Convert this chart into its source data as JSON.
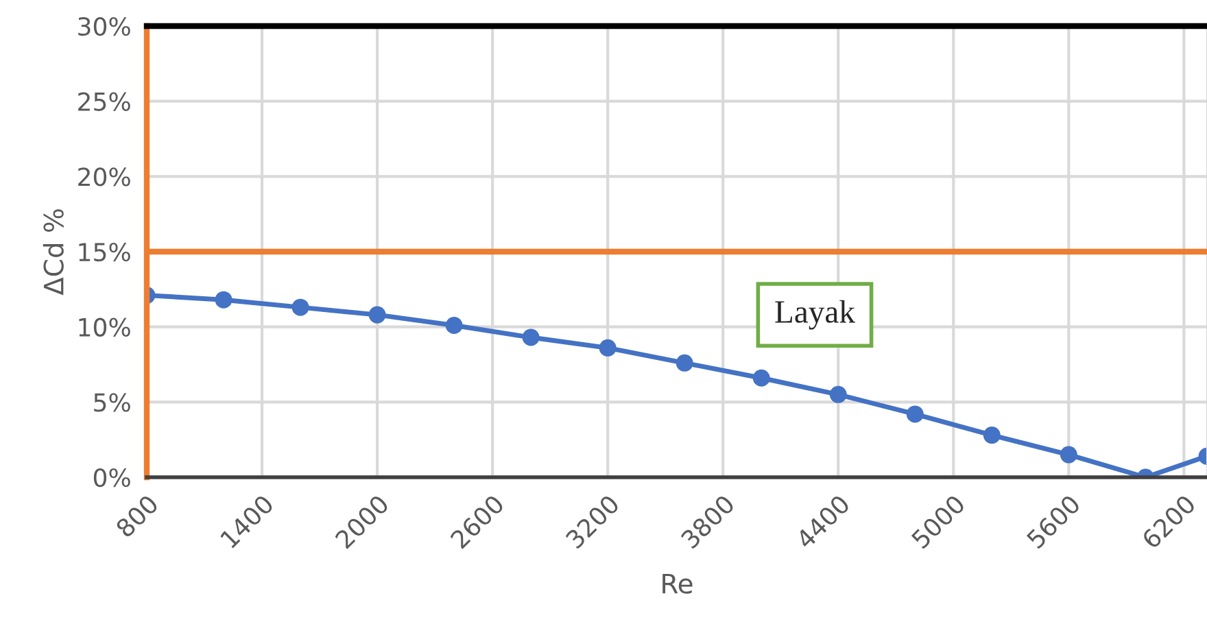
{
  "chart_data": {
    "type": "line",
    "xlabel": "Re",
    "ylabel": "ΔCd %",
    "x": [
      800,
      1200,
      1600,
      2000,
      2400,
      2800,
      3200,
      3600,
      4000,
      4400,
      4800,
      5200,
      5600,
      6000,
      6320
    ],
    "series": [
      {
        "color": "#4472c4",
        "values": [
          12.1,
          11.8,
          11.3,
          10.8,
          10.1,
          9.3,
          8.6,
          7.6,
          6.6,
          5.5,
          4.2,
          2.8,
          1.5,
          0,
          1.4
        ]
      }
    ],
    "xlim": [
      800,
      6320
    ],
    "xticks": [
      800,
      1400,
      2000,
      2600,
      3200,
      3800,
      4400,
      5000,
      5600,
      6200
    ],
    "ylim": [
      0,
      30
    ],
    "yticks": [
      {
        "value": 0,
        "label": "0%"
      },
      {
        "value": 5,
        "label": "5%"
      },
      {
        "value": 10,
        "label": "10%"
      },
      {
        "value": 15,
        "label": "15%"
      },
      {
        "value": 20,
        "label": "20%"
      },
      {
        "value": 25,
        "label": "25%"
      },
      {
        "value": 30,
        "label": "30%"
      }
    ],
    "ref_lines": [
      {
        "axis": "y",
        "value": 15,
        "color": "#ed7d31"
      }
    ],
    "annotations": [
      "Layak"
    ],
    "grid": true,
    "marker": "circle",
    "line_style": "solid",
    "legend": false
  }
}
